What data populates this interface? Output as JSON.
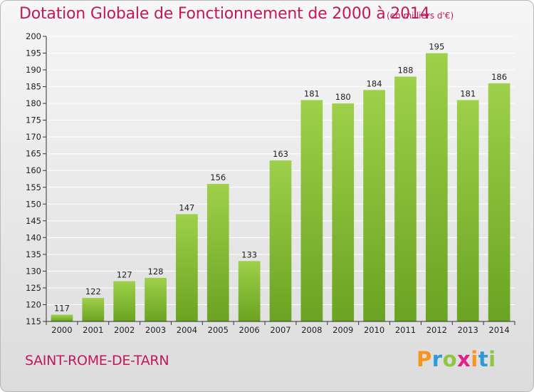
{
  "header": {
    "title": "Dotation Globale de Fonctionnement de 2000 à 2014",
    "subtitle": "(en milliers d'€)"
  },
  "footer": {
    "commune": "SAINT-ROME-DE-TARN",
    "logo_letters": [
      "P",
      "r",
      "o",
      "x",
      "i",
      "t",
      "i"
    ],
    "logo_colors": [
      "#f7941d",
      "#2e9bd6",
      "#8dc63f",
      "#e0218a",
      "#f7941d",
      "#2e9bd6",
      "#8dc63f"
    ]
  },
  "colors": {
    "bar_light": "#9ed04a",
    "bar_dark": "#6aa322",
    "title": "#c2185b",
    "grid": "#ffffff"
  },
  "chart_data": {
    "type": "bar",
    "title": "Dotation Globale de Fonctionnement de 2000 à 2014",
    "subtitle": "(en milliers d'€)",
    "categories": [
      "2000",
      "2001",
      "2002",
      "2003",
      "2004",
      "2005",
      "2006",
      "2007",
      "2008",
      "2009",
      "2010",
      "2011",
      "2012",
      "2013",
      "2014"
    ],
    "values": [
      117,
      122,
      127,
      128,
      147,
      156,
      133,
      163,
      181,
      180,
      184,
      188,
      195,
      181,
      186
    ],
    "ylim": [
      115,
      200
    ],
    "yticks": [
      115,
      120,
      125,
      130,
      135,
      140,
      145,
      150,
      155,
      160,
      165,
      170,
      175,
      180,
      185,
      190,
      195,
      200
    ],
    "grid": true,
    "xlabel": "",
    "ylabel": ""
  }
}
